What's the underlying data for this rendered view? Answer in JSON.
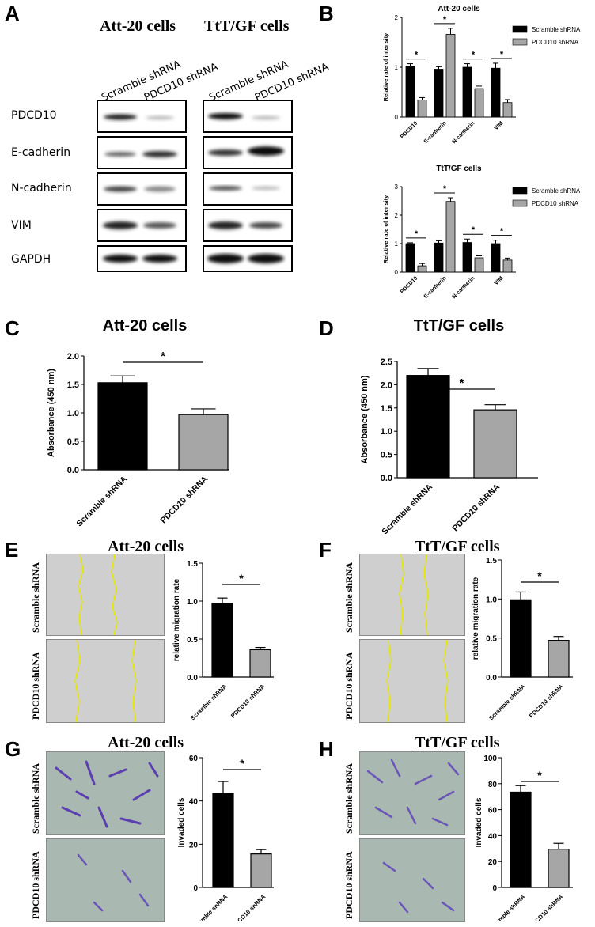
{
  "panels": {
    "A": {
      "letter": "A",
      "att_title": "Att-20 cells",
      "ttt_title": "TtT/GF cells",
      "lanes": [
        "Scramble shRNA",
        "PDCD10 shRNA",
        "Scramble shRNA",
        "PDCD10 shRNA"
      ],
      "proteins": [
        "PDCD10",
        "E-cadherin",
        "N-cadherin",
        "VIM",
        "GAPDH"
      ]
    },
    "B": {
      "letter": "B"
    },
    "C": {
      "letter": "C"
    },
    "D": {
      "letter": "D"
    },
    "E": {
      "letter": "E",
      "title": "Att-20 cells",
      "row1": "Scramble shRNA",
      "row2": "PDCD10 shRNA"
    },
    "F": {
      "letter": "F",
      "title": "TtT/GF cells",
      "row1": "Scramble shRNA",
      "row2": "PDCD10 shRNA"
    },
    "G": {
      "letter": "G",
      "title": "Att-20 cells",
      "row1": "Scramble shRNA",
      "row2": "PDCD10 shRNA"
    },
    "H": {
      "letter": "H",
      "title": "TtT/GF cells",
      "row1": "Scramble shRNA",
      "row2": "PDCD10 shRNA"
    }
  },
  "chart_data": [
    {
      "id": "B1",
      "type": "bar",
      "title": "Att-20 cells",
      "ylabel": "Relative rate of intensity",
      "categories": [
        "PDCD10",
        "E-cadherin",
        "N-cadherin",
        "VIM"
      ],
      "ylim": [
        0,
        2
      ],
      "yticks": [
        0,
        1,
        2
      ],
      "series": [
        {
          "name": "Scramble shRNA",
          "color": "#000000",
          "values": [
            1.02,
            0.96,
            1.0,
            0.98
          ],
          "errors": [
            0.05,
            0.05,
            0.07,
            0.1
          ]
        },
        {
          "name": "PDCD10 shRNA",
          "color": "#a6a6a6",
          "values": [
            0.34,
            1.66,
            0.57,
            0.29
          ],
          "errors": [
            0.05,
            0.12,
            0.05,
            0.06
          ]
        }
      ],
      "annotations": [
        "*",
        "*",
        "*",
        "*"
      ]
    },
    {
      "id": "B2",
      "type": "bar",
      "title": "TtT/GF cells",
      "ylabel": "Relative rate of intensity",
      "categories": [
        "PDCD10",
        "E-cadherin",
        "N-cadherin",
        "VIM"
      ],
      "ylim": [
        0,
        3
      ],
      "yticks": [
        0,
        1,
        2,
        3
      ],
      "series": [
        {
          "name": "Scramble shRNA",
          "color": "#000000",
          "values": [
            1.0,
            1.02,
            1.04,
            1.0
          ],
          "errors": [
            0.03,
            0.08,
            0.12,
            0.12
          ]
        },
        {
          "name": "PDCD10 shRNA",
          "color": "#a6a6a6",
          "values": [
            0.22,
            2.48,
            0.5,
            0.42
          ],
          "errors": [
            0.08,
            0.13,
            0.07,
            0.07
          ]
        }
      ],
      "annotations": [
        "*",
        "*",
        "*",
        "*"
      ]
    },
    {
      "id": "C",
      "type": "bar",
      "title": "Att-20 cells",
      "ylabel": "Absorbance (450 nm)",
      "categories": [
        "Scramble shRNA",
        "PDCD10 shRNA"
      ],
      "ylim": [
        0,
        2
      ],
      "yticks": [
        "0.0",
        "0.5",
        "1.0",
        "1.5",
        "2.0"
      ],
      "values": [
        1.53,
        0.97
      ],
      "errors": [
        0.12,
        0.1
      ],
      "colors": [
        "#000000",
        "#a6a6a6"
      ],
      "annotation": "*"
    },
    {
      "id": "D",
      "type": "bar",
      "title": "TtT/GF cells",
      "ylabel": "Absorbance (450 nm)",
      "categories": [
        "Scramble shRNA",
        "PDCD10 shRNA"
      ],
      "ylim": [
        0,
        2.5
      ],
      "yticks": [
        "0.0",
        "0.5",
        "1.0",
        "1.5",
        "2.0",
        "2.5"
      ],
      "values": [
        2.2,
        1.46
      ],
      "errors": [
        0.15,
        0.11
      ],
      "colors": [
        "#000000",
        "#a6a6a6"
      ],
      "annotation": "*"
    },
    {
      "id": "E",
      "type": "bar",
      "ylabel": "relative migration rate",
      "categories": [
        "Scramble shRNA",
        "PDCD10 shRNA"
      ],
      "ylim": [
        0,
        1.5
      ],
      "yticks": [
        "0.0",
        "0.5",
        "1.0",
        "1.5"
      ],
      "values": [
        0.97,
        0.36
      ],
      "errors": [
        0.07,
        0.03
      ],
      "colors": [
        "#000000",
        "#a6a6a6"
      ],
      "annotation": "*"
    },
    {
      "id": "F",
      "type": "bar",
      "ylabel": "relative migration rate",
      "categories": [
        "Scramble shRNA",
        "PDCD10 shRNA"
      ],
      "ylim": [
        0,
        1.5
      ],
      "yticks": [
        "0.0",
        "0.5",
        "1.0",
        "1.5"
      ],
      "values": [
        0.99,
        0.47
      ],
      "errors": [
        0.1,
        0.05
      ],
      "colors": [
        "#000000",
        "#a6a6a6"
      ],
      "annotation": "*"
    },
    {
      "id": "G",
      "type": "bar",
      "ylabel": "Invaded cells",
      "categories": [
        "Scramble shRNA",
        "PDCD10 shRNA"
      ],
      "ylim": [
        0,
        60
      ],
      "yticks": [
        "0",
        "20",
        "40",
        "60"
      ],
      "values": [
        43.5,
        15.5
      ],
      "errors": [
        5.5,
        2
      ],
      "colors": [
        "#000000",
        "#a6a6a6"
      ],
      "annotation": "*"
    },
    {
      "id": "H",
      "type": "bar",
      "ylabel": "Invaded cells",
      "categories": [
        "Scramble shRNA",
        "PDCD10 shRNA"
      ],
      "ylim": [
        0,
        100
      ],
      "yticks": [
        "0",
        "20",
        "40",
        "60",
        "80",
        "100"
      ],
      "values": [
        73.5,
        29.5
      ],
      "errors": [
        5,
        4.5
      ],
      "colors": [
        "#000000",
        "#a6a6a6"
      ],
      "annotation": "*"
    }
  ]
}
